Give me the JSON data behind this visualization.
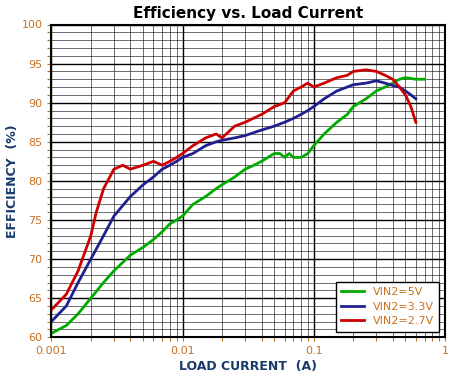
{
  "title": "Efficiency vs. Load Current",
  "xlabel": "LOAD CURRENT  (A)",
  "ylabel": "EFFICIENCY  (%)",
  "xlim": [
    0.001,
    1.0
  ],
  "ylim": [
    60,
    100
  ],
  "yticks": [
    60,
    65,
    70,
    75,
    80,
    85,
    90,
    95,
    100
  ],
  "legend": [
    {
      "label": "VIN2=5V",
      "color": "#00aa00"
    },
    {
      "label": "VIN2=3.3V",
      "color": "#1f1f8f"
    },
    {
      "label": "VIN2=2.7V",
      "color": "#cc0000"
    }
  ],
  "curves": {
    "vin5": {
      "color": "#00aa00",
      "x": [
        0.001,
        0.0013,
        0.0016,
        0.002,
        0.0025,
        0.003,
        0.004,
        0.005,
        0.006,
        0.007,
        0.008,
        0.009,
        0.01,
        0.012,
        0.015,
        0.018,
        0.02,
        0.025,
        0.03,
        0.035,
        0.04,
        0.05,
        0.055,
        0.06,
        0.065,
        0.07,
        0.08,
        0.09,
        0.1,
        0.12,
        0.15,
        0.18,
        0.2,
        0.25,
        0.3,
        0.35,
        0.4,
        0.45,
        0.5,
        0.55,
        0.6,
        0.65,
        0.7
      ],
      "y": [
        60.5,
        61.5,
        63,
        65,
        67,
        68.5,
        70.5,
        71.5,
        72.5,
        73.5,
        74.5,
        75,
        75.5,
        77,
        78,
        79,
        79.5,
        80.5,
        81.5,
        82,
        82.5,
        83.5,
        83.5,
        83.0,
        83.5,
        83.0,
        83.0,
        83.5,
        84.5,
        86.0,
        87.5,
        88.5,
        89.5,
        90.5,
        91.5,
        92.0,
        92.5,
        93.0,
        93.2,
        93.1,
        93.0,
        93.0,
        93.0
      ]
    },
    "vin33": {
      "color": "#1f1f8f",
      "x": [
        0.001,
        0.0013,
        0.0016,
        0.002,
        0.0025,
        0.003,
        0.004,
        0.005,
        0.006,
        0.007,
        0.008,
        0.009,
        0.01,
        0.012,
        0.015,
        0.018,
        0.02,
        0.025,
        0.03,
        0.04,
        0.05,
        0.06,
        0.07,
        0.08,
        0.09,
        0.1,
        0.12,
        0.15,
        0.18,
        0.2,
        0.25,
        0.3,
        0.35,
        0.4,
        0.45,
        0.5,
        0.55,
        0.6
      ],
      "y": [
        62,
        64,
        67,
        70,
        73,
        75.5,
        78,
        79.5,
        80.5,
        81.5,
        82,
        82.5,
        83,
        83.5,
        84.5,
        85,
        85.2,
        85.5,
        85.8,
        86.5,
        87.0,
        87.5,
        88.0,
        88.5,
        89.0,
        89.5,
        90.5,
        91.5,
        92.0,
        92.3,
        92.5,
        92.8,
        92.5,
        92.2,
        92.0,
        91.5,
        91.0,
        90.5
      ]
    },
    "vin27": {
      "color": "#cc0000",
      "x": [
        0.001,
        0.0013,
        0.0016,
        0.002,
        0.0022,
        0.0025,
        0.003,
        0.0035,
        0.004,
        0.005,
        0.006,
        0.007,
        0.008,
        0.009,
        0.01,
        0.012,
        0.015,
        0.018,
        0.02,
        0.025,
        0.03,
        0.04,
        0.05,
        0.06,
        0.07,
        0.08,
        0.09,
        0.1,
        0.12,
        0.15,
        0.18,
        0.2,
        0.25,
        0.3,
        0.35,
        0.4,
        0.45,
        0.5,
        0.55,
        0.6
      ],
      "y": [
        63.5,
        65.5,
        68.5,
        73,
        76,
        79,
        81.5,
        82,
        81.5,
        82,
        82.5,
        82.0,
        82.5,
        83.0,
        83.5,
        84.5,
        85.5,
        86.0,
        85.5,
        87,
        87.5,
        88.5,
        89.5,
        90.0,
        91.5,
        92.0,
        92.5,
        92.0,
        92.5,
        93.2,
        93.5,
        94.0,
        94.2,
        94.0,
        93.5,
        93.0,
        92.0,
        91.0,
        89.5,
        87.5
      ]
    }
  },
  "title_fontsize": 11,
  "axis_label_fontsize": 9,
  "tick_fontsize": 8,
  "legend_fontsize": 8,
  "line_width": 2.0,
  "background_color": "#ffffff",
  "tick_color": "#c87020",
  "label_color": "#1a3a6b"
}
